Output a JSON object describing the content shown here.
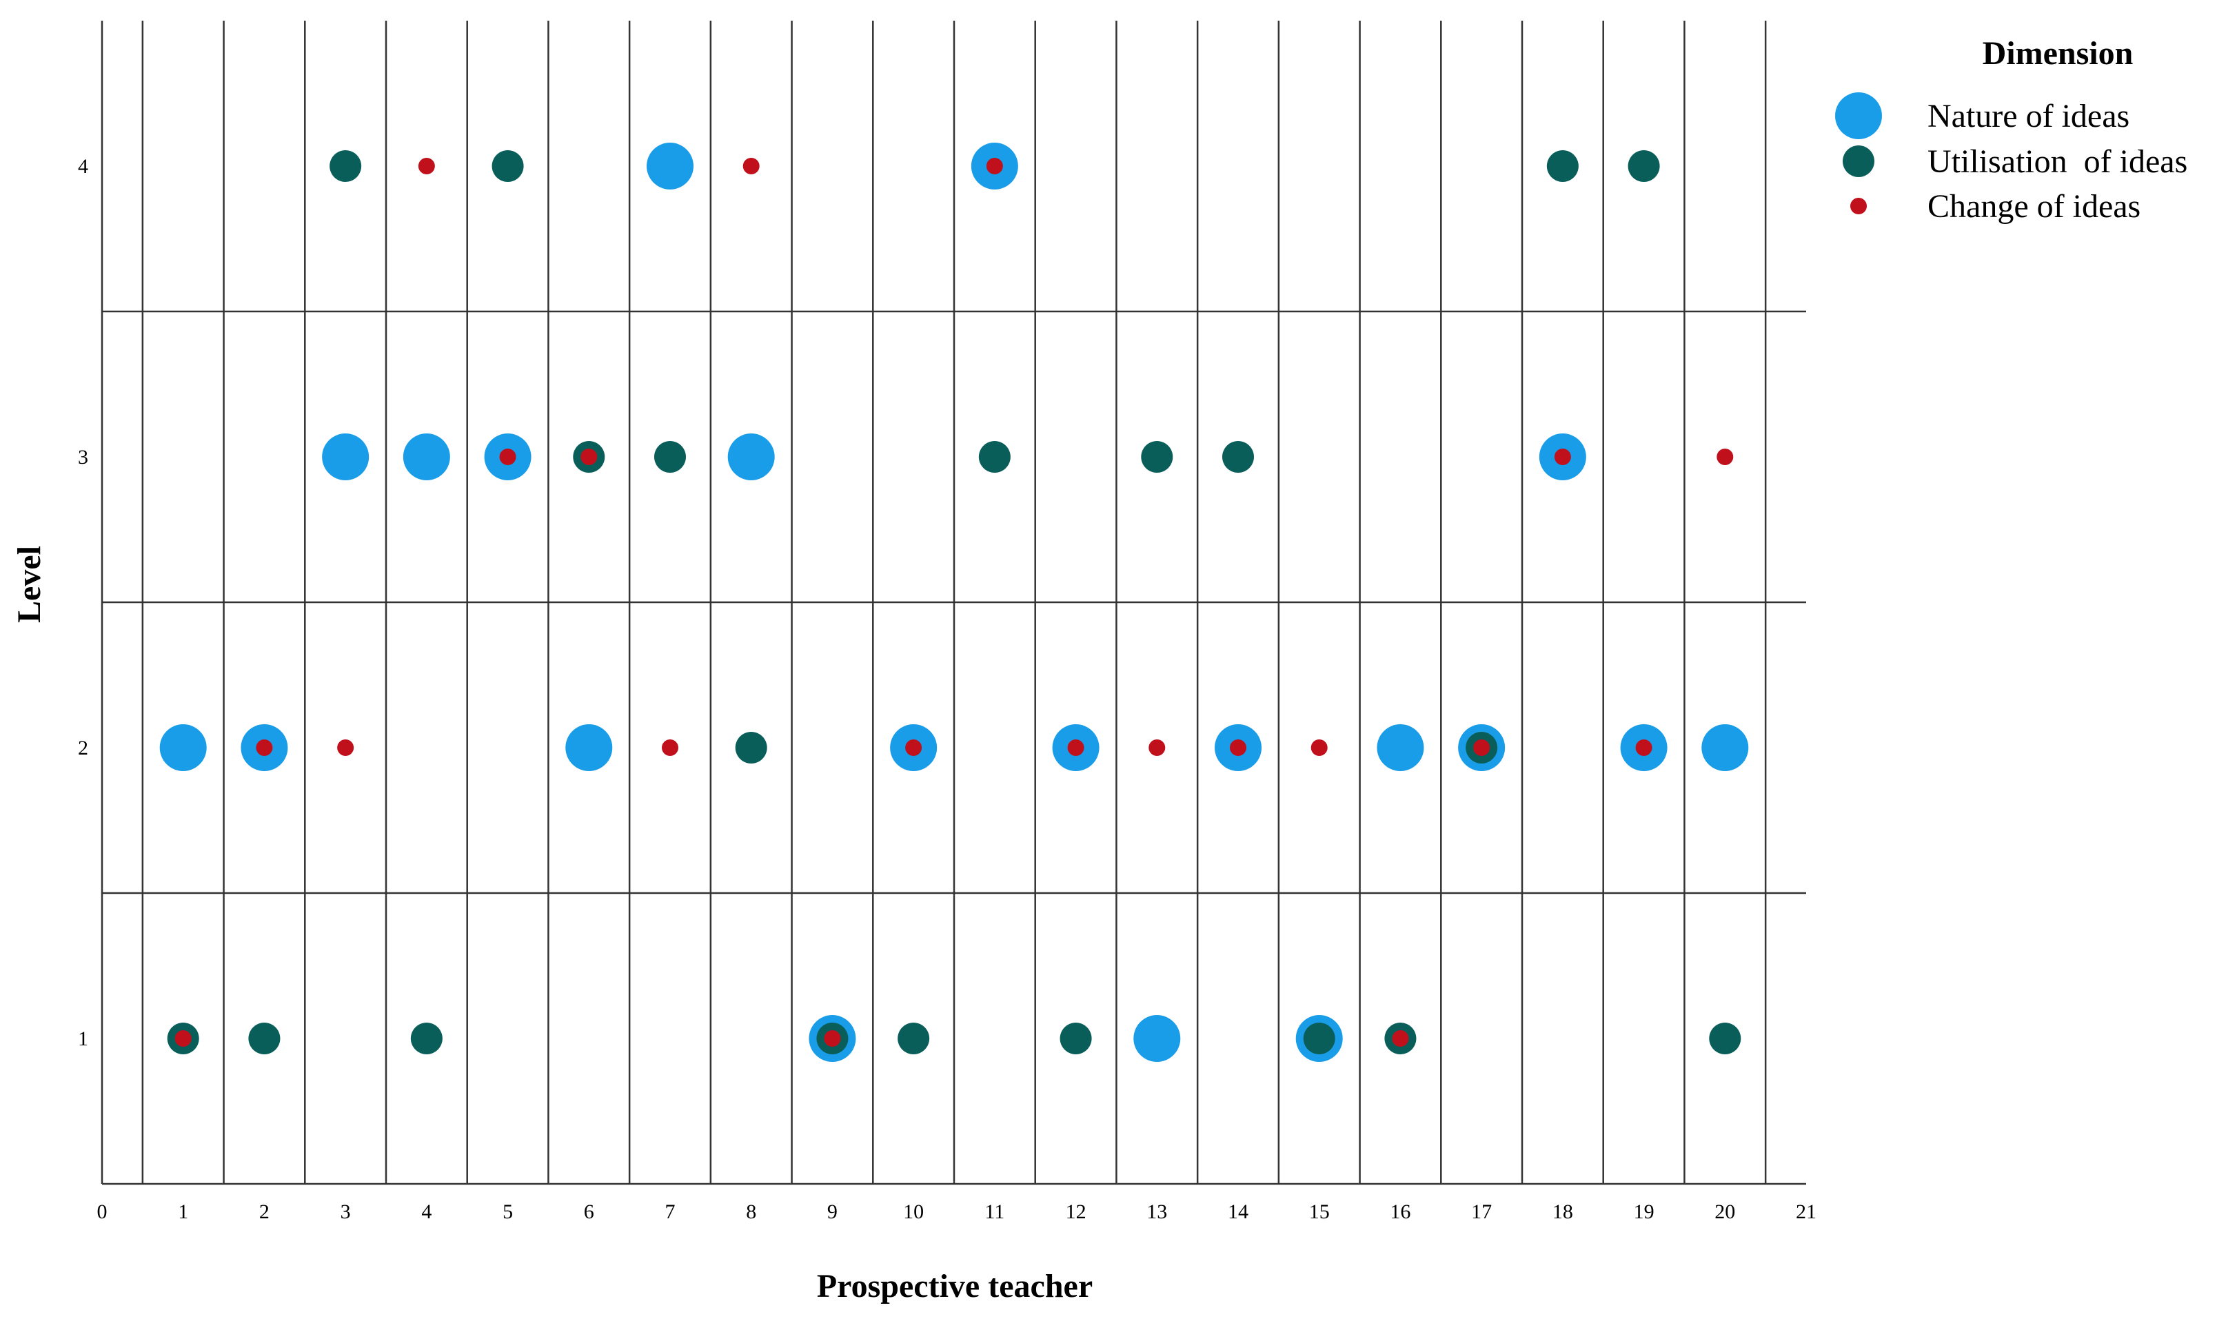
{
  "chart_data": {
    "type": "scatter",
    "xlabel": "Prospective teacher",
    "ylabel": "Level",
    "xlim": [
      0,
      21
    ],
    "ylim": [
      0.5,
      4.5
    ],
    "x_ticks": [
      "0",
      "1",
      "2",
      "3",
      "4",
      "5",
      "6",
      "7",
      "8",
      "9",
      "10",
      "11",
      "12",
      "13",
      "14",
      "15",
      "16",
      "17",
      "18",
      "19",
      "20",
      "21"
    ],
    "y_ticks": [
      "1",
      "2",
      "3",
      "4"
    ],
    "grid": true,
    "legend": {
      "title": "Dimension",
      "placement": "top-right"
    },
    "series": [
      {
        "name": "Nature of ideas",
        "color": "#1a9de8",
        "marker": "large-circle",
        "points": [
          [
            7,
            4
          ],
          [
            11,
            4
          ],
          [
            3,
            3
          ],
          [
            4,
            3
          ],
          [
            5,
            3
          ],
          [
            8,
            3
          ],
          [
            18,
            3
          ],
          [
            1,
            2
          ],
          [
            2,
            2
          ],
          [
            6,
            2
          ],
          [
            10,
            2
          ],
          [
            12,
            2
          ],
          [
            14,
            2
          ],
          [
            16,
            2
          ],
          [
            17,
            2
          ],
          [
            19,
            2
          ],
          [
            20,
            2
          ],
          [
            9,
            1
          ],
          [
            13,
            1
          ],
          [
            15,
            1
          ]
        ]
      },
      {
        "name": "Utilisation  of ideas",
        "color": "#0a5e5a",
        "marker": "medium-circle",
        "points": [
          [
            3,
            4
          ],
          [
            5,
            4
          ],
          [
            18,
            4
          ],
          [
            19,
            4
          ],
          [
            6,
            3
          ],
          [
            7,
            3
          ],
          [
            11,
            3
          ],
          [
            13,
            3
          ],
          [
            14,
            3
          ],
          [
            8,
            2
          ],
          [
            17,
            2
          ],
          [
            1,
            1
          ],
          [
            2,
            1
          ],
          [
            4,
            1
          ],
          [
            9,
            1
          ],
          [
            10,
            1
          ],
          [
            12,
            1
          ],
          [
            15,
            1
          ],
          [
            16,
            1
          ],
          [
            20,
            1
          ]
        ]
      },
      {
        "name": "Change of ideas",
        "color": "#c0101c",
        "marker": "small-circle",
        "points": [
          [
            4,
            4
          ],
          [
            8,
            4
          ],
          [
            11,
            4
          ],
          [
            5,
            3
          ],
          [
            6,
            3
          ],
          [
            18,
            3
          ],
          [
            20,
            3
          ],
          [
            2,
            2
          ],
          [
            3,
            2
          ],
          [
            7,
            2
          ],
          [
            10,
            2
          ],
          [
            12,
            2
          ],
          [
            13,
            2
          ],
          [
            14,
            2
          ],
          [
            15,
            2
          ],
          [
            17,
            2
          ],
          [
            19,
            2
          ],
          [
            1,
            1
          ],
          [
            9,
            1
          ],
          [
            16,
            1
          ]
        ]
      }
    ]
  }
}
